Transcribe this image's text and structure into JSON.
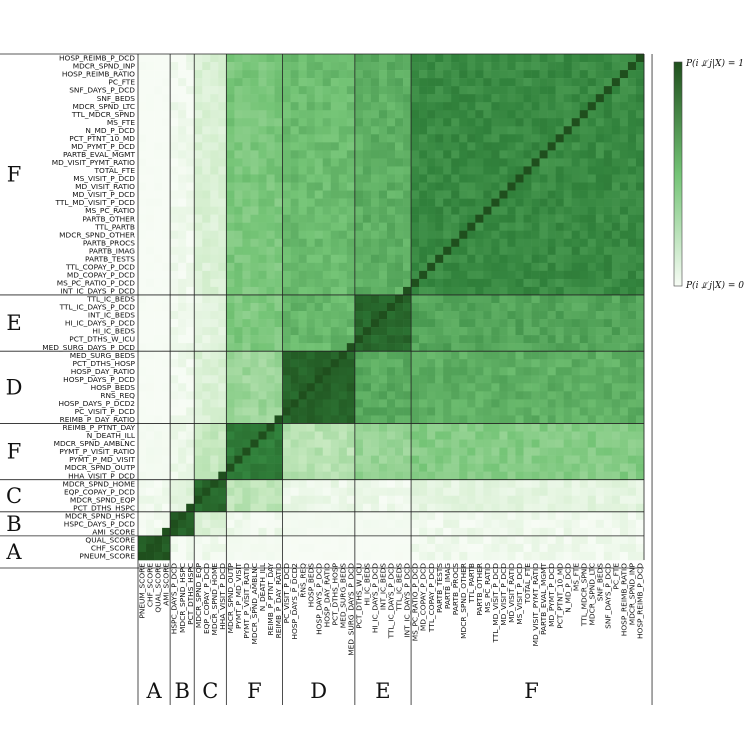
{
  "chart_data": {
    "type": "heatmap",
    "title": "",
    "xlabel": "",
    "ylabel": "",
    "colorbar": {
      "top_label": "P(i ⫫̸ j|X) = 1",
      "bottom_label": "P(i ⫫̸ j|X) = 0",
      "range": [
        0,
        1
      ],
      "color_low": "#f7fcf5",
      "color_high": "#1f4f1d"
    },
    "row_groups_top_to_bottom": [
      {
        "label": "F",
        "size": 30
      },
      {
        "label": "E",
        "size": 7
      },
      {
        "label": "D",
        "size": 9
      },
      {
        "label": "F",
        "size": 7
      },
      {
        "label": "C",
        "size": 4
      },
      {
        "label": "B",
        "size": 3
      },
      {
        "label": "A",
        "size": 4
      }
    ],
    "column_groups_left_to_right": [
      {
        "label": "A",
        "size": 4
      },
      {
        "label": "B",
        "size": 3
      },
      {
        "label": "C",
        "size": 4
      },
      {
        "label": "F",
        "size": 7
      },
      {
        "label": "D",
        "size": 9
      },
      {
        "label": "E",
        "size": 7
      },
      {
        "label": "F",
        "size": 30
      }
    ],
    "row_labels": [
      "HOSP_REIMB_P_DCD",
      "MDCR_SPND_INP",
      "HOSP_REIMB_RATIO",
      "PC_FTE",
      "SNF_DAYS_P_DCD",
      "SNF_BEDS",
      "MDCR_SPND_LTC",
      "TTL_MDCR_SPND",
      "MS_FTE",
      "N_MD_P_DCD",
      "PCT_PTNT_10_MD",
      "MD_PYMT_P_DCD",
      "PARTB_EVAL_MGMT",
      "MD_VISIT_PYMT_RATIO",
      "TOTAL_FTE",
      "MS_VISIT_P_DCD",
      "MD_VISIT_RATIO",
      "MD_VISIT_P_DCD",
      "TTL_MD_VISIT_P_DCD",
      "MS_PC_RATIO",
      "PARTB_OTHER",
      "TTL_PARTB",
      "MDCR_SPND_OTHER",
      "PARTB_PROCS",
      "PARTB_IMAG",
      "PARTB_TESTS",
      "TTL_COPAY_P_DCD",
      "MD_COPAY_P_DCD",
      "MS_PC_RATIO_P_DCD",
      "INT_IC_DAYS_P_DCD",
      "TTL_IC_BEDS",
      "TTL_IC_DAYS_P_DCD",
      "INT_IC_BEDS",
      "HI_IC_DAYS_P_DCD",
      "HI_IC_BEDS",
      "PCT_DTHS_W_ICU",
      "MED_SURG_DAYS_P_DCD",
      "MED_SURG_BEDS",
      "PCT_DTHS_HOSP",
      "HOSP_DAY_RATIO",
      "HOSP_DAYS_P_DCD",
      "HOSP_BEDS",
      "RNS_REQ",
      "HOSP_DAYS_P_DCD2",
      "PC_VISIT_P_DCD",
      "REIMB_P_DAY_RATIO",
      "REIMB_P_PTNT_DAY",
      "N_DEATH_ILL",
      "MDCR_SPND_AMBLNC",
      "PYMT_P_VISIT_RATIO",
      "PYMT_P_MD_VISIT",
      "MDCR_SPND_OUTP",
      "HHA_VISIT_P_DCD",
      "MDCR_SPND_HOME",
      "EQP_COPAY_P_DCD",
      "MDCR_SPND_EQP",
      "PCT_DTHS_HSPC",
      "MDCR_SPND_HSPC",
      "HSPC_DAYS_P_DCD",
      "AMI_SCORE",
      "QUAL_SCORE",
      "CHF_SCORE",
      "PNEUM_SCORE"
    ],
    "column_labels": [
      "PNEUM_SCORE",
      "CHF_SCORE",
      "QUAL_SCORE",
      "AMI_SCORE",
      "HSPC_DAYS_P_DCD",
      "MDCR_SPND_HSPC",
      "PCT_DTHS_HSPC",
      "MDCR_SPND_EQP",
      "EQP_COPAY_P_DCD",
      "MDCR_SPND_HOME",
      "HHA_VISIT_P_DCD",
      "MDCR_SPND_OUTP",
      "PYMT_P_MD_VISIT",
      "PYMT_P_VISIT_RATIO",
      "MDCR_SPND_AMBLNC",
      "N_DEATH_ILL",
      "REIMB_P_PTNT_DAY",
      "REIMB_P_DAY_RATIO",
      "PC_VISIT_P_DCD",
      "HOSP_DAYS_P_DCD2",
      "RNS_REQ",
      "HOSP_BEDS",
      "HOSP_DAYS_P_DCD",
      "HOSP_DAY_RATIO",
      "PCT_DTHS_HOSP",
      "MED_SURG_BEDS",
      "MED_SURG_DAYS_P_DCD",
      "PCT_DTHS_W_ICU",
      "HI_IC_BEDS",
      "HI_IC_DAYS_P_DCD",
      "INT_IC_BEDS",
      "TTL_IC_DAYS_P_DCD",
      "TTL_IC_BEDS",
      "INT_IC_DAYS_P_DCD",
      "MS_PC_RATIO_P_DCD",
      "MD_COPAY_P_DCD",
      "TTL_COPAY_P_DCD",
      "PARTB_TESTS",
      "PARTB_IMAG",
      "PARTB_PROCS",
      "MDCR_SPND_OTHER",
      "TTL_PARTB",
      "PARTB_OTHER",
      "MS_PC_RATIO",
      "TTL_MD_VISIT_P_DCD",
      "MD_VISIT_P_DCD",
      "MD_VISIT_RATIO",
      "MS_VISIT_P_DCD",
      "TOTAL_FTE",
      "MD_VISIT_PYMT_RATIO",
      "PARTB_EVAL_MGMT",
      "MD_PYMT_P_DCD",
      "PCT_PTNT_10_MD",
      "N_MD_P_DCD",
      "MS_FTE",
      "TTL_MDCR_SPND",
      "MDCR_SPND_LTC",
      "SNF_BEDS",
      "SNF_DAYS_P_DCD",
      "PC_FTE",
      "HOSP_REIMB_RATIO",
      "MDCR_SPND_INP",
      "HOSP_REIMB_P_DCD"
    ],
    "block_values_top_to_bottom_rows_by_left_to_right_cols": [
      [
        0.0,
        0.03,
        0.15,
        0.48,
        0.53,
        0.58,
        0.72
      ],
      [
        0.0,
        0.03,
        0.1,
        0.47,
        0.55,
        0.88,
        0.62
      ],
      [
        0.0,
        0.03,
        0.15,
        0.38,
        0.9,
        0.6,
        0.58
      ],
      [
        0.02,
        0.06,
        0.25,
        0.78,
        0.3,
        0.4,
        0.45
      ],
      [
        0.03,
        0.12,
        0.88,
        0.28,
        0.06,
        0.05,
        0.1
      ],
      [
        0.03,
        0.92,
        0.15,
        0.04,
        0.02,
        0.02,
        0.04
      ],
      [
        0.95,
        0.03,
        0.03,
        0.02,
        0.0,
        0.0,
        0.03
      ]
    ]
  }
}
